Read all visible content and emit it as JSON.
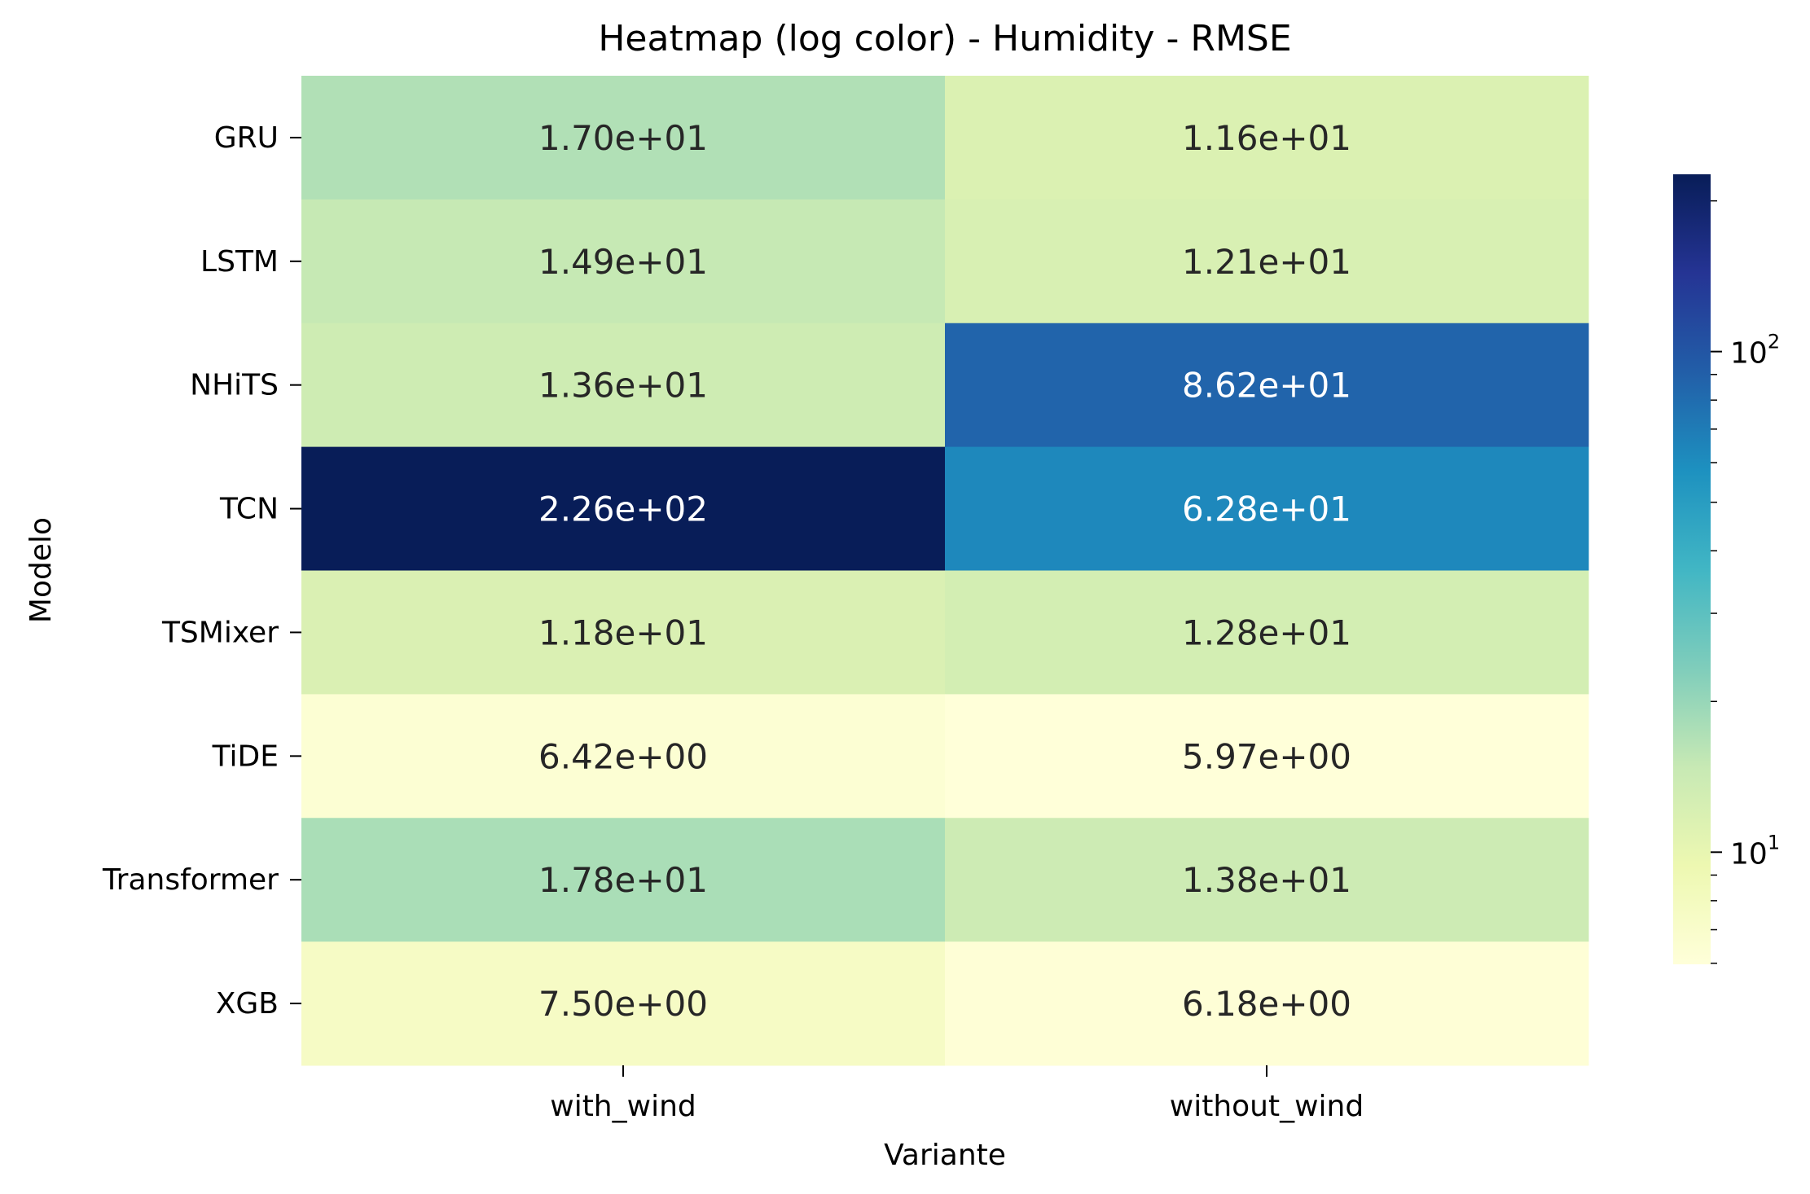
{
  "chart_data": {
    "type": "heatmap",
    "title": "Heatmap (log color) - Humidity - RMSE",
    "xlabel": "Variante",
    "ylabel": "Modelo",
    "x_categories": [
      "with_wind",
      "without_wind"
    ],
    "y_categories": [
      "GRU",
      "LSTM",
      "NHiTS",
      "TCN",
      "TSMixer",
      "TiDE",
      "Transformer",
      "XGB"
    ],
    "values": [
      [
        17.0,
        11.6
      ],
      [
        14.9,
        12.1
      ],
      [
        13.6,
        86.2
      ],
      [
        226.0,
        62.8
      ],
      [
        11.8,
        12.8
      ],
      [
        6.42,
        5.97
      ],
      [
        17.8,
        13.8
      ],
      [
        7.5,
        6.18
      ]
    ],
    "cell_labels": [
      [
        "1.70e+01",
        "1.16e+01"
      ],
      [
        "1.49e+01",
        "1.21e+01"
      ],
      [
        "1.36e+01",
        "8.62e+01"
      ],
      [
        "2.26e+02",
        "6.28e+01"
      ],
      [
        "1.18e+01",
        "1.28e+01"
      ],
      [
        "6.42e+00",
        "5.97e+00"
      ],
      [
        "1.78e+01",
        "1.38e+01"
      ],
      [
        "7.50e+00",
        "6.18e+00"
      ]
    ],
    "color_scale": {
      "type": "log",
      "colormap": "YlGnBu",
      "vmin": 5.97,
      "vmax": 226.0,
      "stops": [
        "#ffffd9",
        "#edf8b1",
        "#c7e9b4",
        "#7fcdbb",
        "#41b6c4",
        "#1d91c0",
        "#225ea8",
        "#253494",
        "#081d58"
      ]
    },
    "colorbar": {
      "major_ticks": [
        {
          "value": 10,
          "base": "10",
          "exp": "1"
        },
        {
          "value": 100,
          "base": "10",
          "exp": "2"
        }
      ],
      "minor_ticks": [
        6,
        7,
        8,
        9,
        20,
        30,
        40,
        50,
        60,
        70,
        80,
        90,
        200
      ]
    },
    "grid": false,
    "legend": "colorbar-right"
  }
}
